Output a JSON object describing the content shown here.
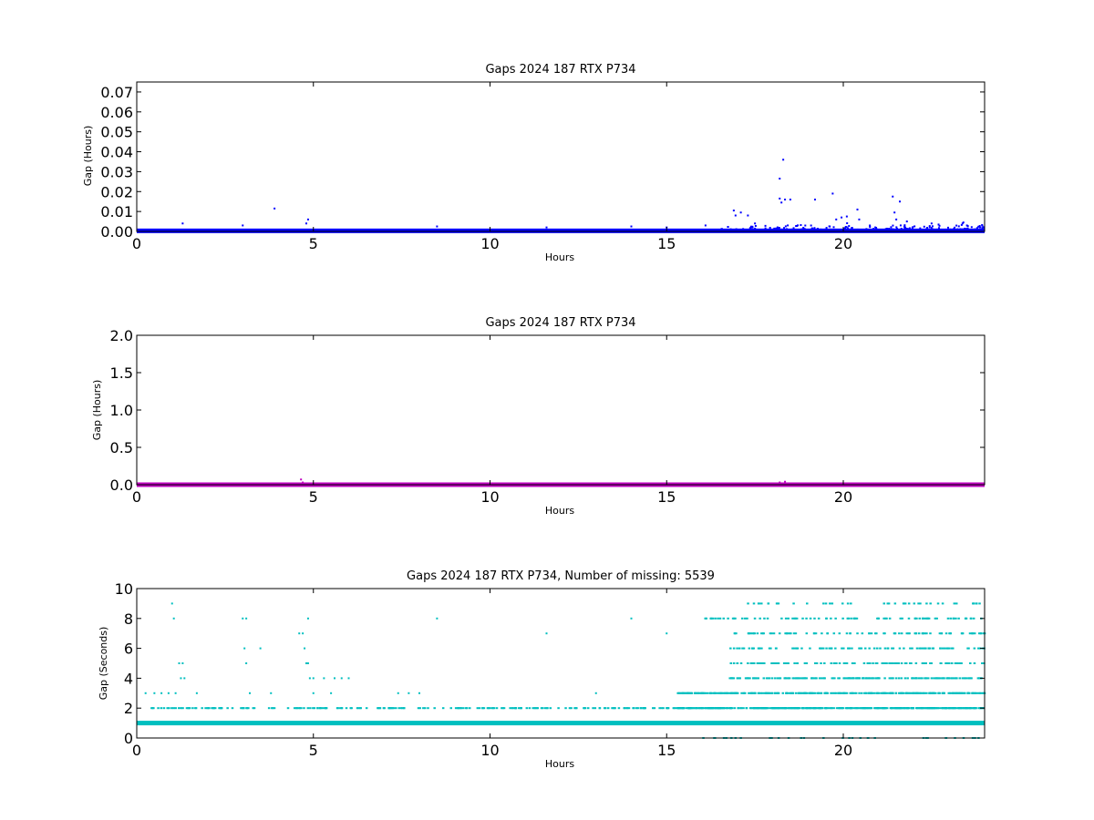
{
  "chart_data": [
    {
      "type": "scatter",
      "title": "Gaps 2024 187 RTX  P734",
      "xlabel": "Hours",
      "ylabel": "Gap (Hours)",
      "xlim": [
        0,
        24
      ],
      "ylim": [
        0,
        0.075
      ],
      "x_ticks": [
        "0",
        "5",
        "10",
        "15",
        "20"
      ],
      "y_ticks": [
        "0.00",
        "0.01",
        "0.02",
        "0.03",
        "0.04",
        "0.05",
        "0.06",
        "0.07"
      ],
      "marker_color": "#0000ff",
      "series": [
        {
          "baseline_value": 0.0003,
          "points": [
            [
              3.9,
              0.0115
            ],
            [
              4.85,
              0.006
            ],
            [
              4.8,
              0.004
            ],
            [
              1.3,
              0.004
            ],
            [
              3.0,
              0.003
            ],
            [
              8.5,
              0.0025
            ],
            [
              11.6,
              0.002
            ],
            [
              14.0,
              0.0025
            ],
            [
              15.0,
              0.002
            ],
            [
              16.1,
              0.003
            ],
            [
              16.9,
              0.0105
            ],
            [
              16.95,
              0.008
            ],
            [
              17.1,
              0.0095
            ],
            [
              17.3,
              0.008
            ],
            [
              17.5,
              0.004
            ],
            [
              18.2,
              0.0265
            ],
            [
              18.2,
              0.0165
            ],
            [
              18.25,
              0.0145
            ],
            [
              18.3,
              0.036
            ],
            [
              18.35,
              0.016
            ],
            [
              18.5,
              0.016
            ],
            [
              19.2,
              0.016
            ],
            [
              19.7,
              0.019
            ],
            [
              19.8,
              0.006
            ],
            [
              19.95,
              0.007
            ],
            [
              20.1,
              0.0075
            ],
            [
              20.4,
              0.011
            ],
            [
              20.45,
              0.006
            ],
            [
              21.4,
              0.0175
            ],
            [
              21.45,
              0.0095
            ],
            [
              21.5,
              0.006
            ],
            [
              21.6,
              0.015
            ],
            [
              21.8,
              0.005
            ],
            [
              22.5,
              0.004
            ],
            [
              23.4,
              0.0045
            ],
            [
              23.5,
              0.003
            ]
          ],
          "dense_ranges": [
            [
              16.5,
              24,
              0.004
            ]
          ]
        }
      ]
    },
    {
      "type": "scatter",
      "title": "Gaps 2024 187 RTX  P734",
      "xlabel": "Hours",
      "ylabel": "Gap (Hours)",
      "xlim": [
        0,
        24
      ],
      "ylim": [
        0,
        2.0
      ],
      "x_ticks": [
        "0",
        "5",
        "10",
        "15",
        "20"
      ],
      "y_ticks": [
        "0.0",
        "0.5",
        "1.0",
        "1.5",
        "2.0"
      ],
      "marker_color": "#bf00bf",
      "series": [
        {
          "baseline_value": 0.0003,
          "points": [
            [
              4.65,
              0.07
            ],
            [
              4.7,
              0.03
            ],
            [
              18.2,
              0.03
            ],
            [
              18.35,
              0.04
            ]
          ],
          "dense_ranges": []
        }
      ]
    },
    {
      "type": "scatter",
      "title": "Gaps 2024 187 RTX  P734, Number of missing: 5539",
      "xlabel": "Hours",
      "ylabel": "Gap (Seconds)",
      "xlim": [
        0,
        24
      ],
      "ylim": [
        0,
        10
      ],
      "x_ticks": [
        "0",
        "5",
        "10",
        "15",
        "20"
      ],
      "y_ticks": [
        "0",
        "2",
        "4",
        "6",
        "8",
        "10"
      ],
      "marker_color": "#00bfbf",
      "series": [
        {
          "baseline_value": 1,
          "points": [
            [
              1.0,
              9
            ],
            [
              1.05,
              8
            ],
            [
              3.0,
              8
            ],
            [
              3.1,
              8
            ],
            [
              3.05,
              6
            ],
            [
              3.1,
              5
            ],
            [
              3.5,
              6
            ],
            [
              4.6,
              7
            ],
            [
              4.7,
              7
            ],
            [
              4.75,
              6
            ],
            [
              4.8,
              5
            ],
            [
              4.85,
              5
            ],
            [
              4.85,
              8
            ],
            [
              8.5,
              8
            ],
            [
              11.6,
              7
            ],
            [
              14.0,
              8
            ],
            [
              15.0,
              7
            ],
            [
              13.0,
              3
            ],
            [
              1.2,
              5
            ],
            [
              1.3,
              5
            ],
            [
              1.25,
              4
            ],
            [
              1.35,
              4
            ],
            [
              0.25,
              3
            ],
            [
              0.5,
              3
            ],
            [
              0.7,
              3
            ],
            [
              0.9,
              3
            ],
            [
              1.1,
              3
            ],
            [
              1.7,
              3
            ],
            [
              3.2,
              3
            ],
            [
              3.8,
              3
            ],
            [
              5.0,
              3
            ],
            [
              5.5,
              3
            ],
            [
              7.4,
              3
            ],
            [
              7.7,
              3
            ],
            [
              8.0,
              3
            ],
            [
              5.3,
              4
            ],
            [
              5.6,
              4
            ],
            [
              5.8,
              4
            ],
            [
              6.0,
              4
            ],
            [
              5.0,
              4
            ],
            [
              4.9,
              4
            ]
          ],
          "level_bands": [
            {
              "value": 2,
              "from": 0.4,
              "to": 24,
              "density": 0.35
            },
            {
              "value": 3,
              "from": 15.3,
              "to": 24,
              "density": 0.9
            },
            {
              "value": 2,
              "from": 15.3,
              "to": 24,
              "density": 0.9
            },
            {
              "value": 4,
              "from": 16.7,
              "to": 24,
              "density": 0.6
            },
            {
              "value": 5,
              "from": 16.8,
              "to": 24,
              "density": 0.35
            },
            {
              "value": 6,
              "from": 16.8,
              "to": 24,
              "density": 0.3
            },
            {
              "value": 7,
              "from": 16.9,
              "to": 24,
              "density": 0.3
            },
            {
              "value": 8,
              "from": 16.0,
              "to": 24,
              "density": 0.25
            },
            {
              "value": 9,
              "from": 17.0,
              "to": 24,
              "density": 0.15
            },
            {
              "value": 0,
              "from": 16.0,
              "to": 24,
              "density": 0.1
            }
          ]
        }
      ]
    }
  ]
}
